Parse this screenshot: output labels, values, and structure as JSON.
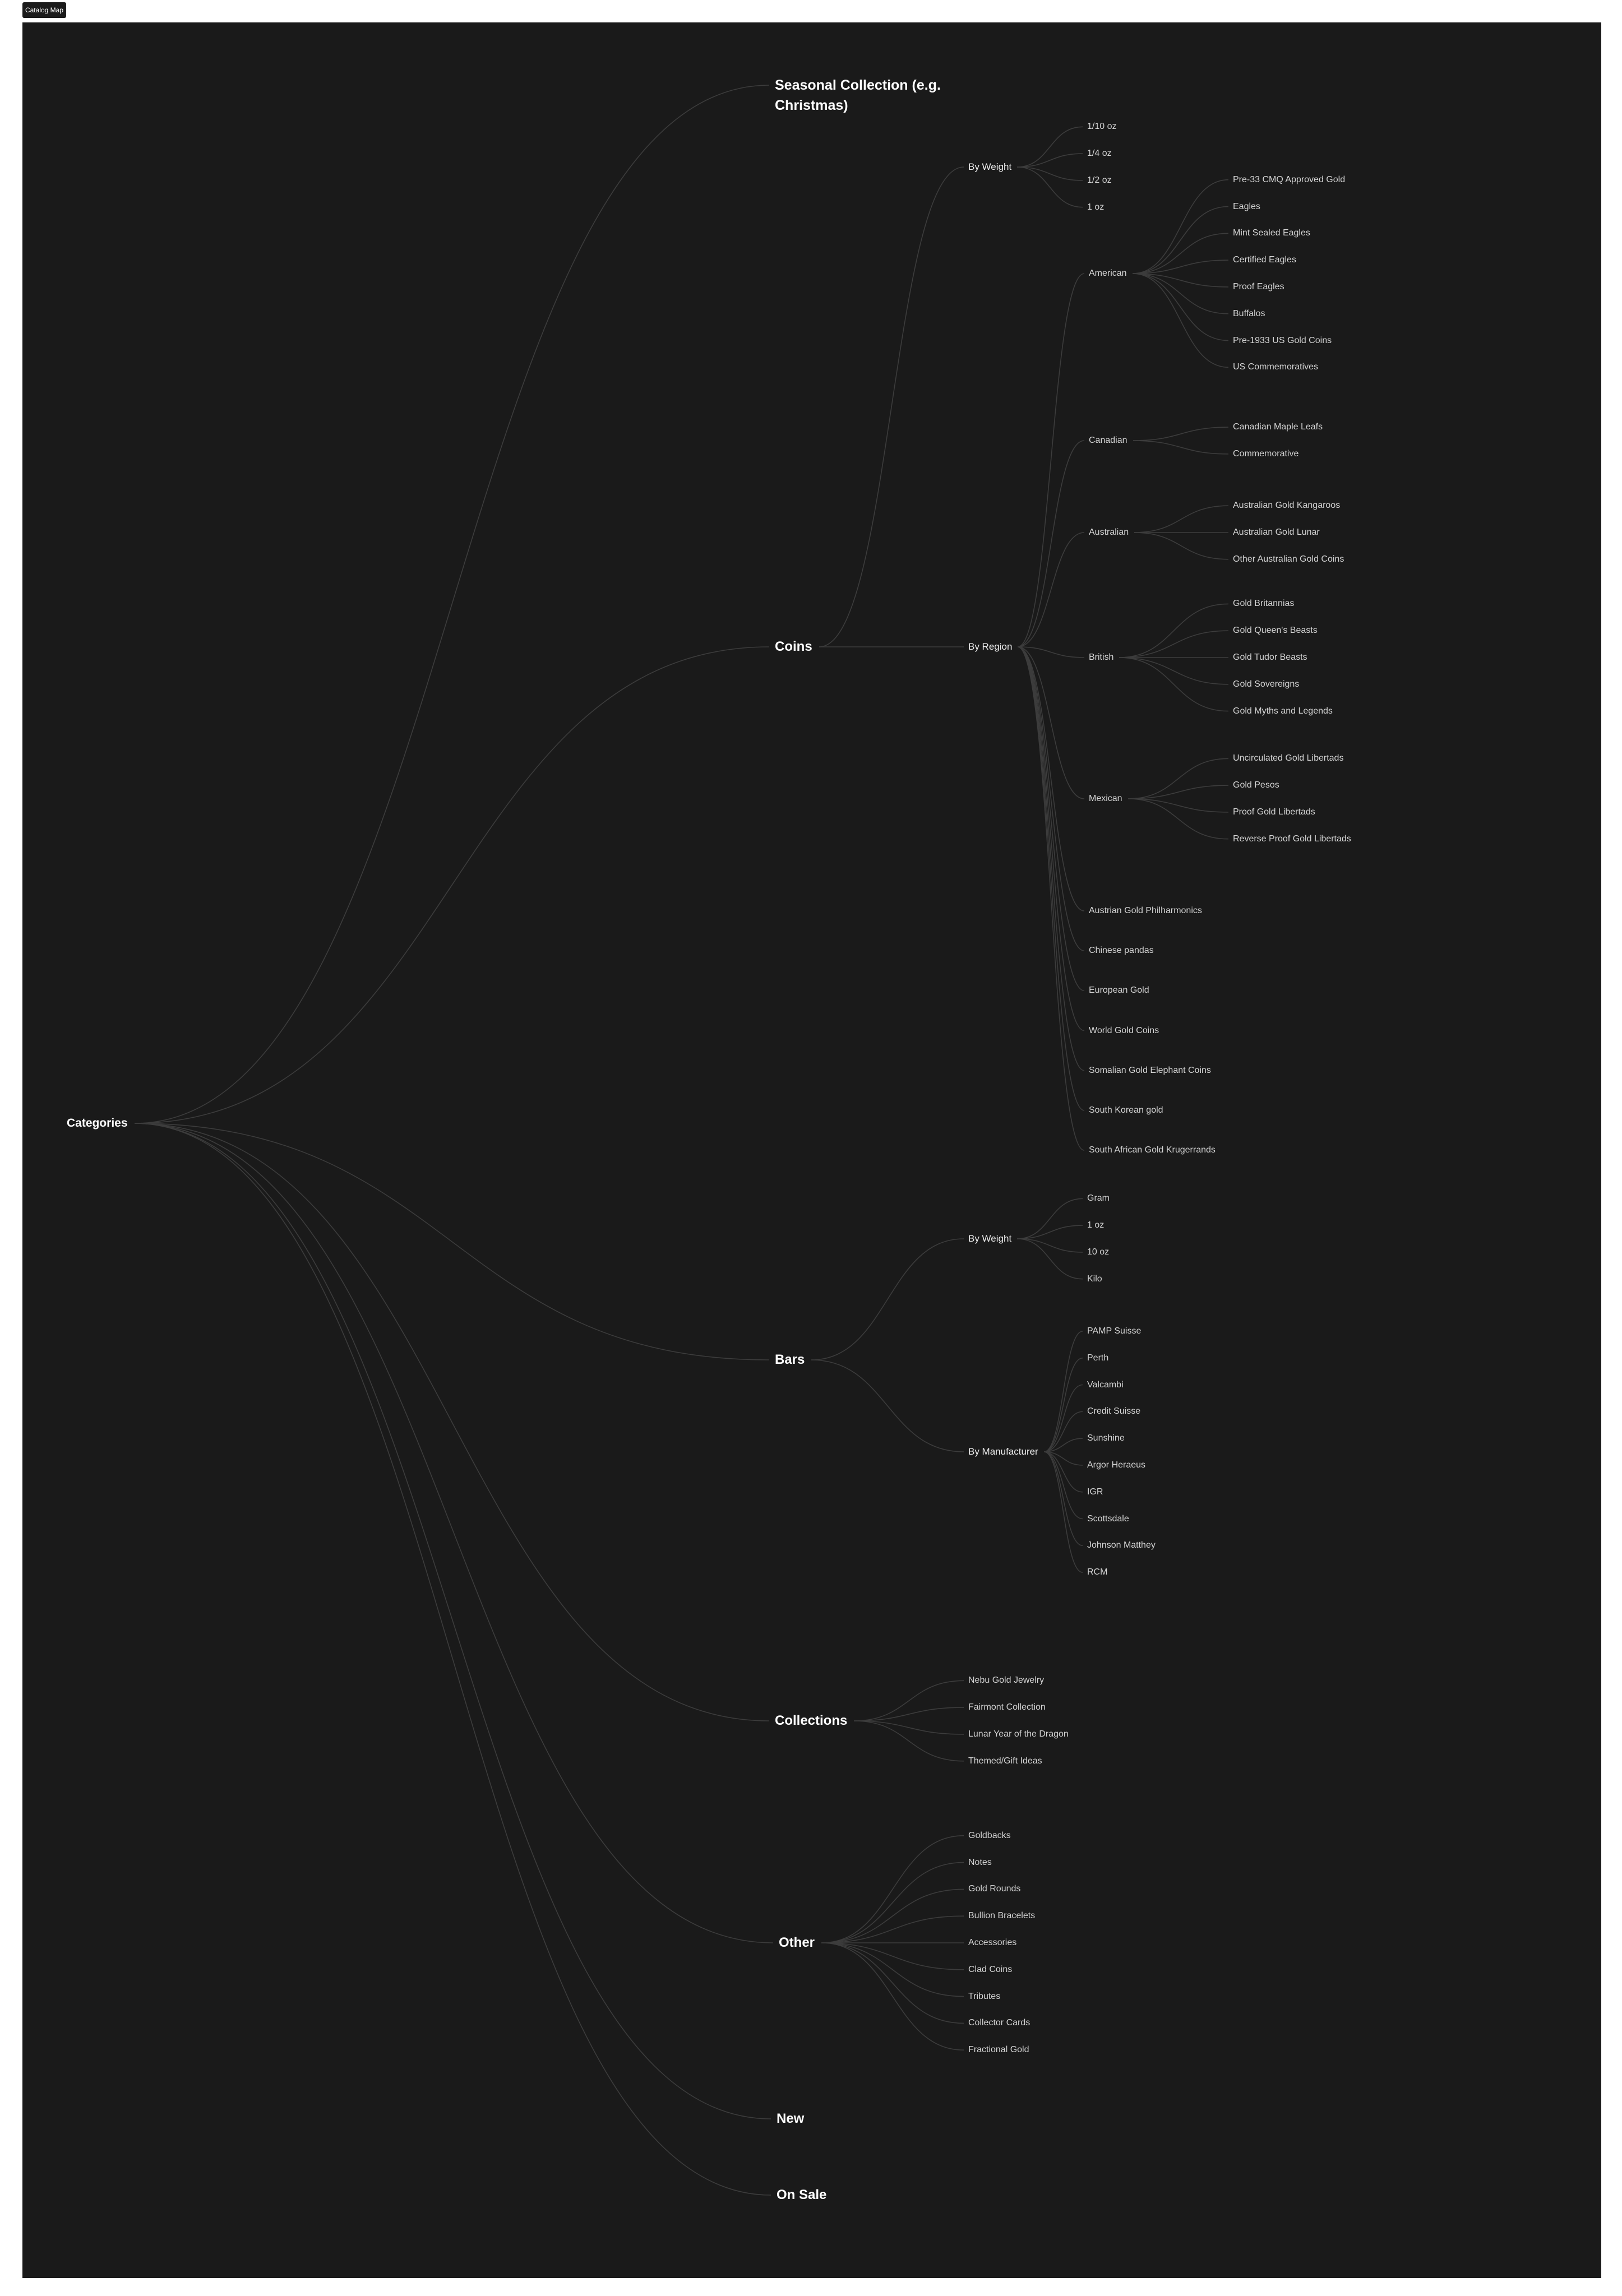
{
  "frame": {
    "tab_label": "Catalog Map"
  },
  "colors": {
    "background": "#1a1a1a",
    "link": "#3c3c3c",
    "text": "#ffffff",
    "leaf_text": "#d4d4d4"
  },
  "root": "Categories",
  "tree": [
    {
      "label": "Seasonal Collection (e.g. Christmas)",
      "children": []
    },
    {
      "label": "Coins",
      "children": [
        {
          "label": "By Weight",
          "children": [
            "1/10 oz",
            "1/4 oz",
            "1/2 oz",
            "1 oz"
          ]
        },
        {
          "label": "By Region",
          "children": [
            {
              "label": "American",
              "children": [
                "Pre-33 CMQ Approved Gold",
                "Eagles",
                "Mint Sealed Eagles",
                "Certified Eagles",
                "Proof Eagles",
                "Buffalos",
                "Pre-1933 US Gold Coins",
                "US Commemoratives"
              ]
            },
            {
              "label": "Canadian",
              "children": [
                "Canadian Maple Leafs",
                "Commemorative"
              ]
            },
            {
              "label": "Australian",
              "children": [
                "Australian Gold Kangaroos",
                "Australian Gold Lunar",
                "Other Australian Gold Coins"
              ]
            },
            {
              "label": "British",
              "children": [
                "Gold Britannias",
                "Gold Queen's Beasts",
                "Gold Tudor Beasts",
                "Gold Sovereigns",
                "Gold Myths and Legends"
              ]
            },
            {
              "label": "Mexican",
              "children": [
                "Uncirculated Gold Libertads",
                "Gold Pesos",
                "Proof Gold Libertads",
                "Reverse Proof Gold Libertads"
              ]
            },
            "Austrian Gold Philharmonics",
            "Chinese pandas",
            "European Gold",
            "World Gold Coins",
            "Somalian Gold Elephant Coins",
            "South Korean gold",
            "South African Gold Krugerrands"
          ]
        }
      ]
    },
    {
      "label": "Bars",
      "children": [
        {
          "label": "By Weight",
          "children": [
            "Gram",
            "1 oz",
            "10 oz",
            "Kilo"
          ]
        },
        {
          "label": "By Manufacturer",
          "children": [
            "PAMP Suisse",
            "Perth",
            "Valcambi",
            "Credit Suisse",
            "Sunshine",
            "Argor Heraeus",
            "IGR",
            "Scottsdale",
            "Johnson Matthey",
            "RCM"
          ]
        }
      ]
    },
    {
      "label": "Collections",
      "children": [
        "Nebu Gold Jewelry",
        "Fairmont Collection",
        "Lunar Year of the Dragon",
        "Themed/Gift Ideas"
      ]
    },
    {
      "label": "Other",
      "children": [
        "Goldbacks",
        "Notes",
        "Gold Rounds",
        "Bullion Bracelets",
        "Accessories",
        "Clad Coins",
        "Tributes",
        "Collector Cards",
        "Fractional Gold"
      ]
    },
    {
      "label": "New",
      "children": []
    },
    {
      "label": "On Sale",
      "children": []
    }
  ]
}
